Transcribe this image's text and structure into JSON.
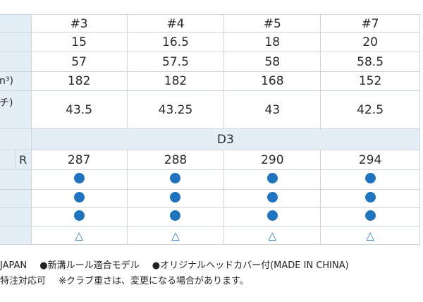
{
  "columns": [
    "#3",
    "#4",
    "#5",
    "#7"
  ],
  "rows": [
    {
      "label": "",
      "values": [
        "15",
        "16.5",
        "18",
        "20"
      ]
    },
    {
      "label": "",
      "values": [
        "57",
        "57.5",
        "58",
        "58.5"
      ]
    },
    {
      "label": "n³)",
      "values": [
        "182",
        "182",
        "168",
        "152"
      ]
    },
    {
      "label": "チ)",
      "values": [
        "43.5",
        "43.25",
        "43",
        "42.5"
      ]
    }
  ],
  "swing_weight": "D3",
  "flex_row": {
    "flex": "R",
    "values": [
      "287",
      "288",
      "290",
      "294"
    ]
  },
  "marks": [
    [
      "●",
      "●",
      "●",
      "●"
    ],
    [
      "●",
      "●",
      "●",
      "●"
    ],
    [
      "●",
      "●",
      "●",
      "●"
    ],
    [
      "△",
      "△",
      "△",
      "△"
    ]
  ],
  "notes": {
    "line1": [
      "JAPAN",
      "●新溝ルール適合モデル",
      "●オリジナルヘッドカバー付(MADE IN CHINA)"
    ],
    "line2": [
      "特注対応可",
      "※クラブ重さは、変更になる場合があります。"
    ]
  },
  "colors": {
    "header_bg": "#e3eef6",
    "border": "#cfd6de",
    "accent": "#1f74c0"
  }
}
